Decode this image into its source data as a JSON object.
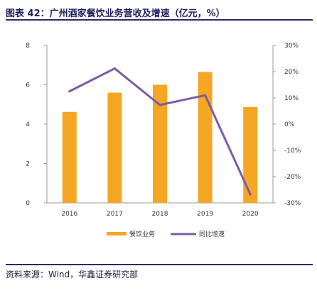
{
  "header": {
    "title": "图表 42：广州酒家餐饮业务营收及增速（亿元，%）"
  },
  "footer": {
    "source": "资料来源：Wind，华鑫证券研究部"
  },
  "colors": {
    "bar": "#F5A623",
    "line": "#7B5BA6",
    "rule": "#2a2a6a"
  },
  "chart_data": {
    "type": "bar",
    "categories": [
      "2016",
      "2017",
      "2018",
      "2019",
      "2020"
    ],
    "series": [
      {
        "name": "餐饮业务",
        "type": "bar",
        "axis": "left",
        "values": [
          4.62,
          5.6,
          6.0,
          6.65,
          4.87
        ]
      },
      {
        "name": "同比增速",
        "type": "line",
        "axis": "right",
        "values": [
          12.5,
          21.2,
          7.3,
          11.0,
          -26.8
        ]
      }
    ],
    "y_left": {
      "ylim": [
        0,
        8
      ],
      "ticks": [
        "0",
        "2",
        "4",
        "6",
        "8"
      ]
    },
    "y_right": {
      "ylim": [
        -30,
        30
      ],
      "ticks": [
        "-30%",
        "-20%",
        "-10%",
        "0%",
        "10%",
        "20%",
        "30%"
      ]
    },
    "legend_placement": "bottom-center",
    "grid": false
  }
}
